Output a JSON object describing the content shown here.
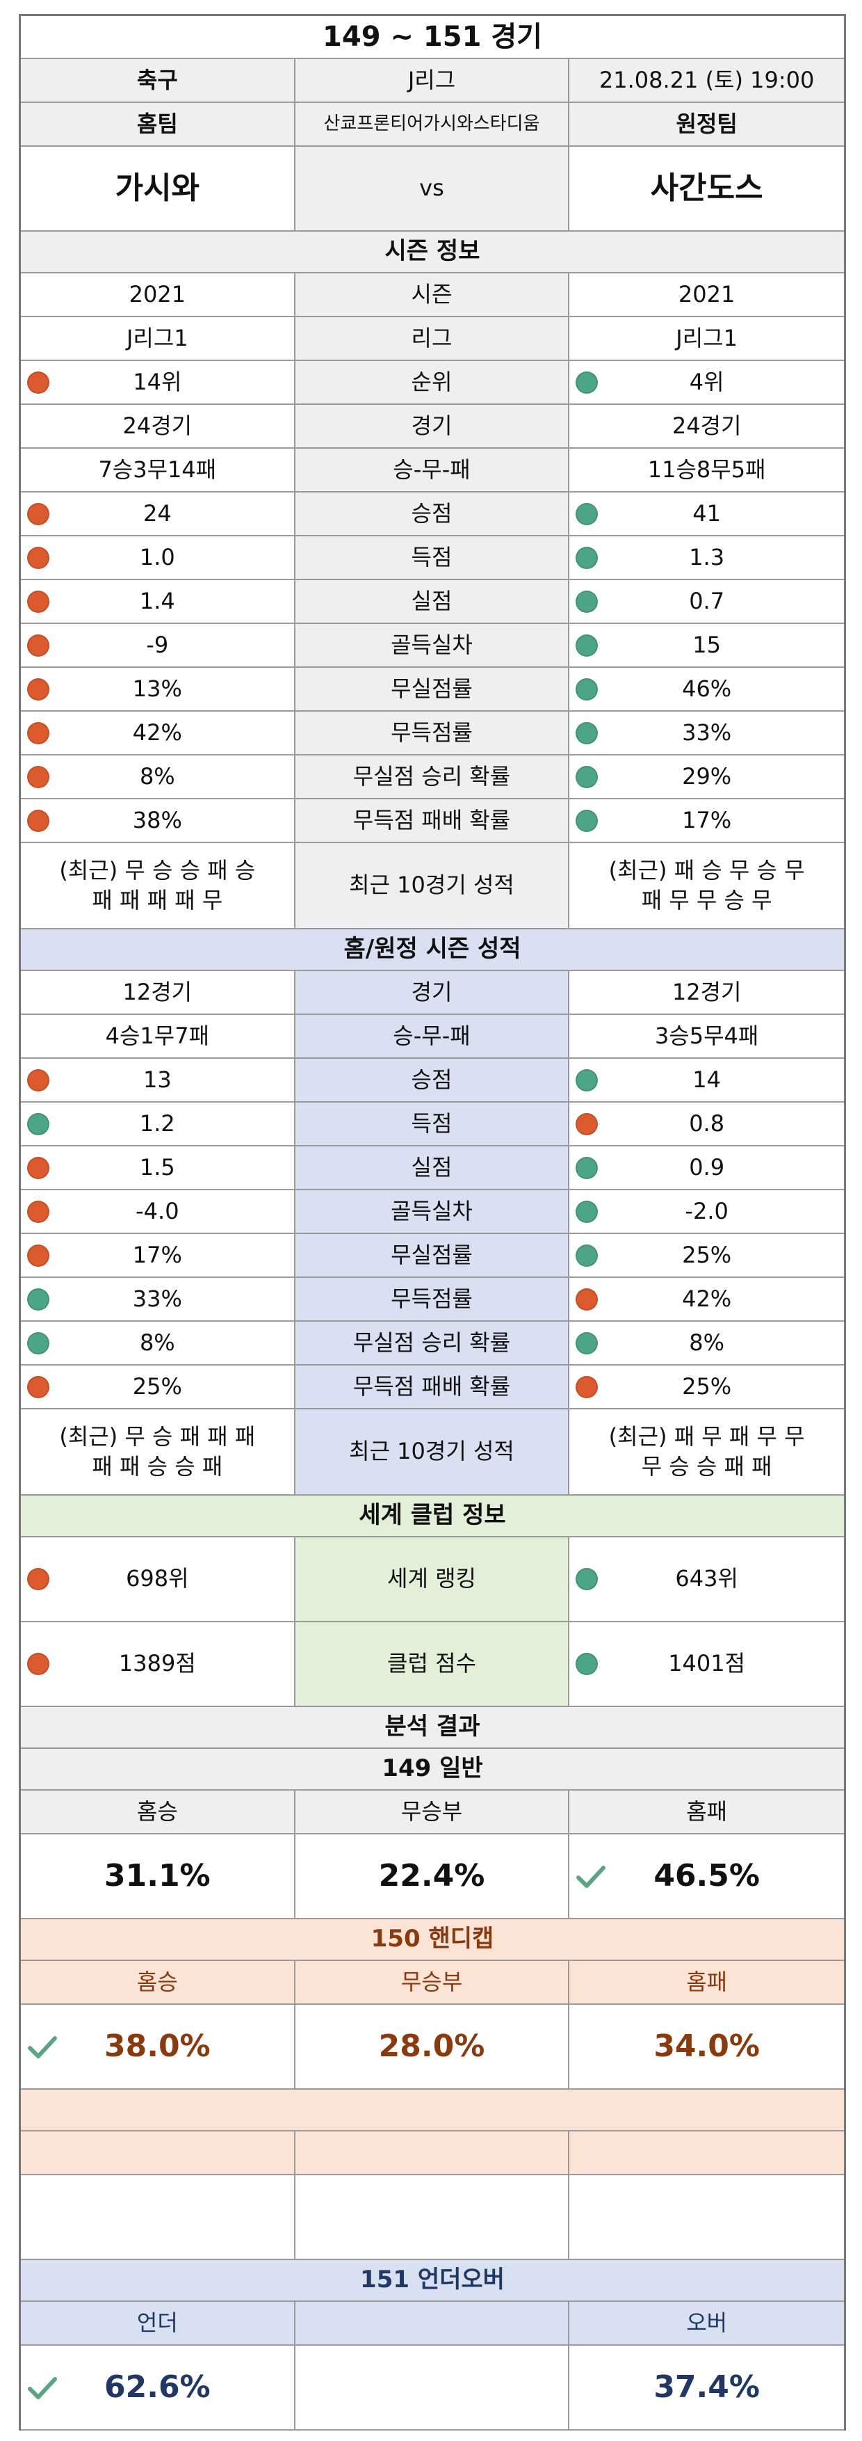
{
  "title": "149 ~ 151 경기",
  "match": {
    "sport": "축구",
    "league": "J리그",
    "datetime": "21.08.21 (토) 19:00",
    "home_label": "홈팀",
    "venue": "산쿄프론티어가시와스타디움",
    "away_label": "원정팀",
    "home_team": "가시와",
    "vs": "vs",
    "away_team": "사간도스"
  },
  "season": {
    "header": "시즌 정보",
    "rows": [
      {
        "label": "시즌",
        "home": "2021",
        "away": "2021"
      },
      {
        "label": "리그",
        "home": "J리그1",
        "away": "J리그1"
      },
      {
        "label": "순위",
        "home": "14위",
        "away": "4위",
        "home_dot": "red",
        "away_dot": "green"
      },
      {
        "label": "경기",
        "home": "24경기",
        "away": "24경기"
      },
      {
        "label": "승-무-패",
        "home": "7승3무14패",
        "away": "11승8무5패"
      },
      {
        "label": "승점",
        "home": "24",
        "away": "41",
        "home_dot": "red",
        "away_dot": "green"
      },
      {
        "label": "득점",
        "home": "1.0",
        "away": "1.3",
        "home_dot": "red",
        "away_dot": "green"
      },
      {
        "label": "실점",
        "home": "1.4",
        "away": "0.7",
        "home_dot": "red",
        "away_dot": "green"
      },
      {
        "label": "골득실차",
        "home": "-9",
        "away": "15",
        "home_dot": "red",
        "away_dot": "green"
      },
      {
        "label": "무실점률",
        "home": "13%",
        "away": "46%",
        "home_dot": "red",
        "away_dot": "green"
      },
      {
        "label": "무득점률",
        "home": "42%",
        "away": "33%",
        "home_dot": "red",
        "away_dot": "green"
      },
      {
        "label": "무실점 승리 확률",
        "home": "8%",
        "away": "29%",
        "home_dot": "red",
        "away_dot": "green"
      },
      {
        "label": "무득점 패배 확률",
        "home": "38%",
        "away": "17%",
        "home_dot": "red",
        "away_dot": "green"
      }
    ],
    "recent_label": "최근 10경기 성적",
    "home_recent_1": "(최근) 무 승 승 패 승",
    "home_recent_2": "패 패 패 패 무",
    "away_recent_1": "(최근) 패 승 무 승 무",
    "away_recent_2": "패 무 무 승 무"
  },
  "homeaway": {
    "header": "홈/원정 시즌 성적",
    "rows": [
      {
        "label": "경기",
        "home": "12경기",
        "away": "12경기"
      },
      {
        "label": "승-무-패",
        "home": "4승1무7패",
        "away": "3승5무4패"
      },
      {
        "label": "승점",
        "home": "13",
        "away": "14",
        "home_dot": "red",
        "away_dot": "green"
      },
      {
        "label": "득점",
        "home": "1.2",
        "away": "0.8",
        "home_dot": "green",
        "away_dot": "red"
      },
      {
        "label": "실점",
        "home": "1.5",
        "away": "0.9",
        "home_dot": "red",
        "away_dot": "green"
      },
      {
        "label": "골득실차",
        "home": "-4.0",
        "away": "-2.0",
        "home_dot": "red",
        "away_dot": "green"
      },
      {
        "label": "무실점률",
        "home": "17%",
        "away": "25%",
        "home_dot": "red",
        "away_dot": "green"
      },
      {
        "label": "무득점률",
        "home": "33%",
        "away": "42%",
        "home_dot": "green",
        "away_dot": "red"
      },
      {
        "label": "무실점 승리 확률",
        "home": "8%",
        "away": "8%",
        "home_dot": "green",
        "away_dot": "green"
      },
      {
        "label": "무득점 패배 확률",
        "home": "25%",
        "away": "25%",
        "home_dot": "red",
        "away_dot": "red"
      }
    ],
    "recent_label": "최근 10경기 성적",
    "home_recent_1": "(최근) 무 승 패 패 패",
    "home_recent_2": "패 패 승 승 패",
    "away_recent_1": "(최근) 패 무 패 무 무",
    "away_recent_2": "무 승 승 패 패"
  },
  "world": {
    "header": "세계 클럽 정보",
    "rows": [
      {
        "label": "세계 랭킹",
        "home": "698위",
        "away": "643위",
        "home_dot": "red",
        "away_dot": "green"
      },
      {
        "label": "클럽 점수",
        "home": "1389점",
        "away": "1401점",
        "home_dot": "red",
        "away_dot": "green"
      }
    ]
  },
  "analysis": {
    "header": "분석 결과",
    "general": {
      "header": "149 일반",
      "labels": [
        "홈승",
        "무승부",
        "홈패"
      ],
      "values": [
        "31.1%",
        "22.4%",
        "46.5%"
      ],
      "check_index": 2
    },
    "handicap": {
      "header": "150 핸디캡",
      "labels": [
        "홈승",
        "무승부",
        "홈패"
      ],
      "values": [
        "38.0%",
        "28.0%",
        "34.0%"
      ],
      "check_index": 0
    },
    "underover": {
      "header": "151 언더오버",
      "labels": [
        "언더",
        "",
        "오버"
      ],
      "values": [
        "62.6%",
        "",
        "37.4%"
      ],
      "check_index": 0
    }
  },
  "colors": {
    "dot_red": "#dd5a2f",
    "dot_green": "#4da588",
    "check_green": "#5aa582",
    "section_blue": "#d9e0f1",
    "section_green": "#e2efd9",
    "section_peach": "#fbe3d6",
    "header_gray": "#efefef"
  },
  "icons": {
    "red_dot": "red-status-dot-icon",
    "green_dot": "green-status-dot-icon",
    "check": "checkmark-icon"
  }
}
